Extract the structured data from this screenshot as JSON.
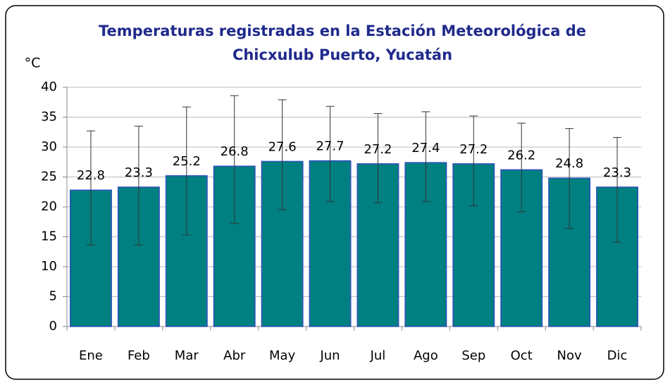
{
  "chart_data": {
    "type": "bar",
    "title": [
      "Temperaturas registradas en la Estación Meteorológica de",
      "Chicxulub Puerto, Yucatán"
    ],
    "y_label": "°C",
    "categories": [
      "Ene",
      "Feb",
      "Mar",
      "Abr",
      "May",
      "Jun",
      "Jul",
      "Ago",
      "Sep",
      "Oct",
      "Nov",
      "Dic"
    ],
    "values": [
      22.8,
      23.3,
      25.2,
      26.8,
      27.6,
      27.7,
      27.2,
      27.4,
      27.2,
      26.2,
      24.8,
      23.3
    ],
    "error_plus": [
      9.9,
      10.2,
      11.5,
      11.8,
      10.3,
      9.1,
      8.4,
      8.5,
      8.0,
      7.8,
      8.3,
      8.3
    ],
    "error_minus": [
      9.2,
      9.7,
      9.9,
      9.6,
      8.1,
      6.8,
      6.5,
      6.5,
      7.0,
      7.0,
      8.4,
      9.2
    ],
    "color": "#008080",
    "ylim": [
      0,
      40
    ],
    "yticks": [
      0,
      5,
      10,
      15,
      20,
      25,
      30,
      35,
      40
    ],
    "grid": true
  }
}
